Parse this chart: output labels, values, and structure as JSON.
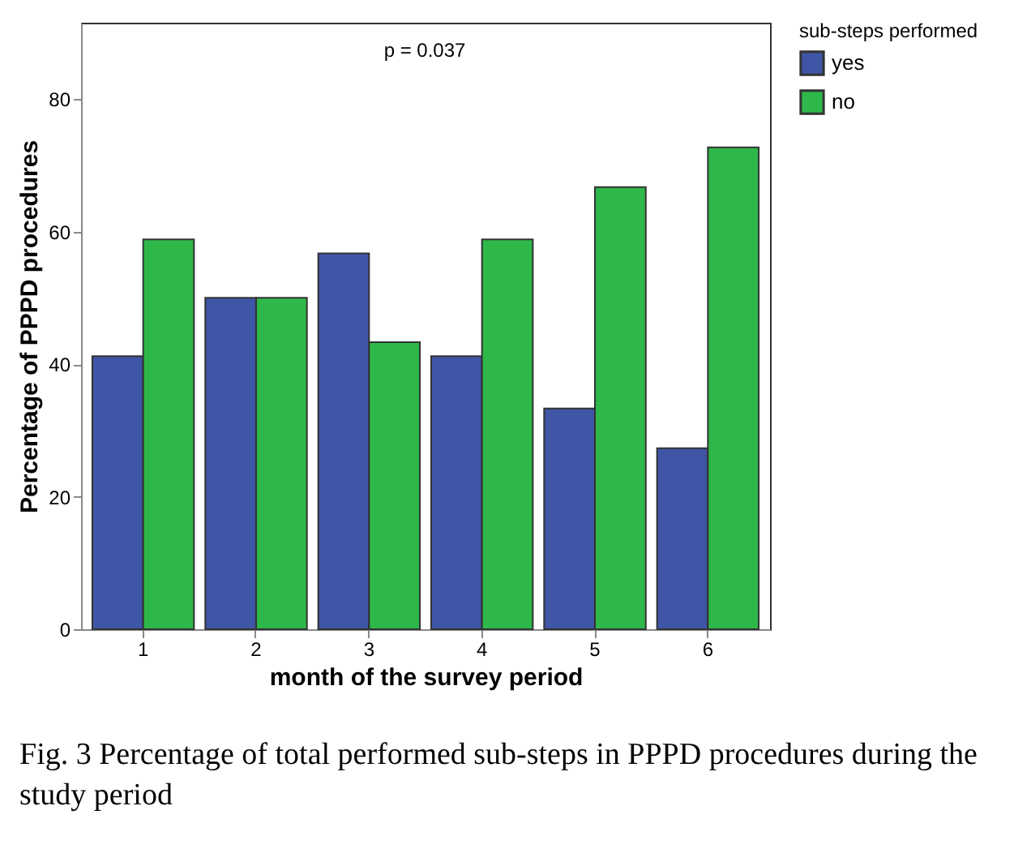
{
  "chart_data": {
    "type": "bar",
    "xlabel": "month of the survey period",
    "ylabel": "Percentage of PPPD procedures",
    "legend_title": "sub-steps performed",
    "categories": [
      "1",
      "2",
      "3",
      "4",
      "5",
      "6"
    ],
    "series": [
      {
        "name": "yes",
        "color": "#3f55a5",
        "values": [
          41.2,
          50,
          56.7,
          41.2,
          33.3,
          27.3
        ]
      },
      {
        "name": "no",
        "color": "#2fb84a",
        "values": [
          58.8,
          50,
          43.3,
          58.8,
          66.7,
          72.7
        ]
      }
    ],
    "ylim": [
      0,
      91.5
    ],
    "yticks": [
      0,
      20,
      40,
      60,
      80
    ],
    "grid": false,
    "legend": "top right",
    "annotations": [
      "p = 0.037",
      "Fig. 3  Percentage of total performed sub-steps in PPPD procedures during the study period"
    ]
  }
}
